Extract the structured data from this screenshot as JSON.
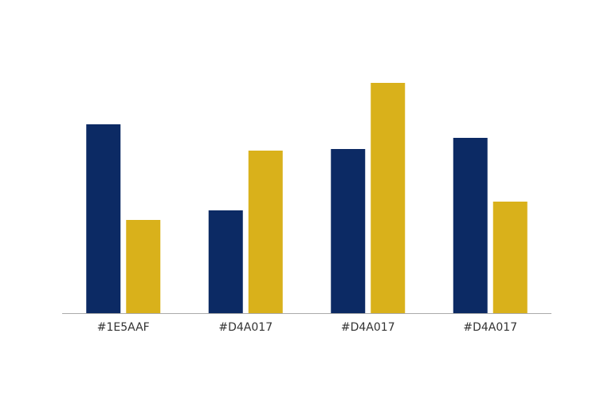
{
  "chart_data": {
    "type": "bar",
    "categories": [
      "#1E5AAF",
      "#D4A017",
      "#D4A017",
      "#D4A017"
    ],
    "series": [
      {
        "color": "#0c2a64",
        "values": [
          237,
          129,
          206,
          220
        ]
      },
      {
        "color": "#d9b11b",
        "values": [
          117,
          204,
          289,
          140
        ]
      }
    ],
    "ylim": [
      0,
      300
    ]
  }
}
